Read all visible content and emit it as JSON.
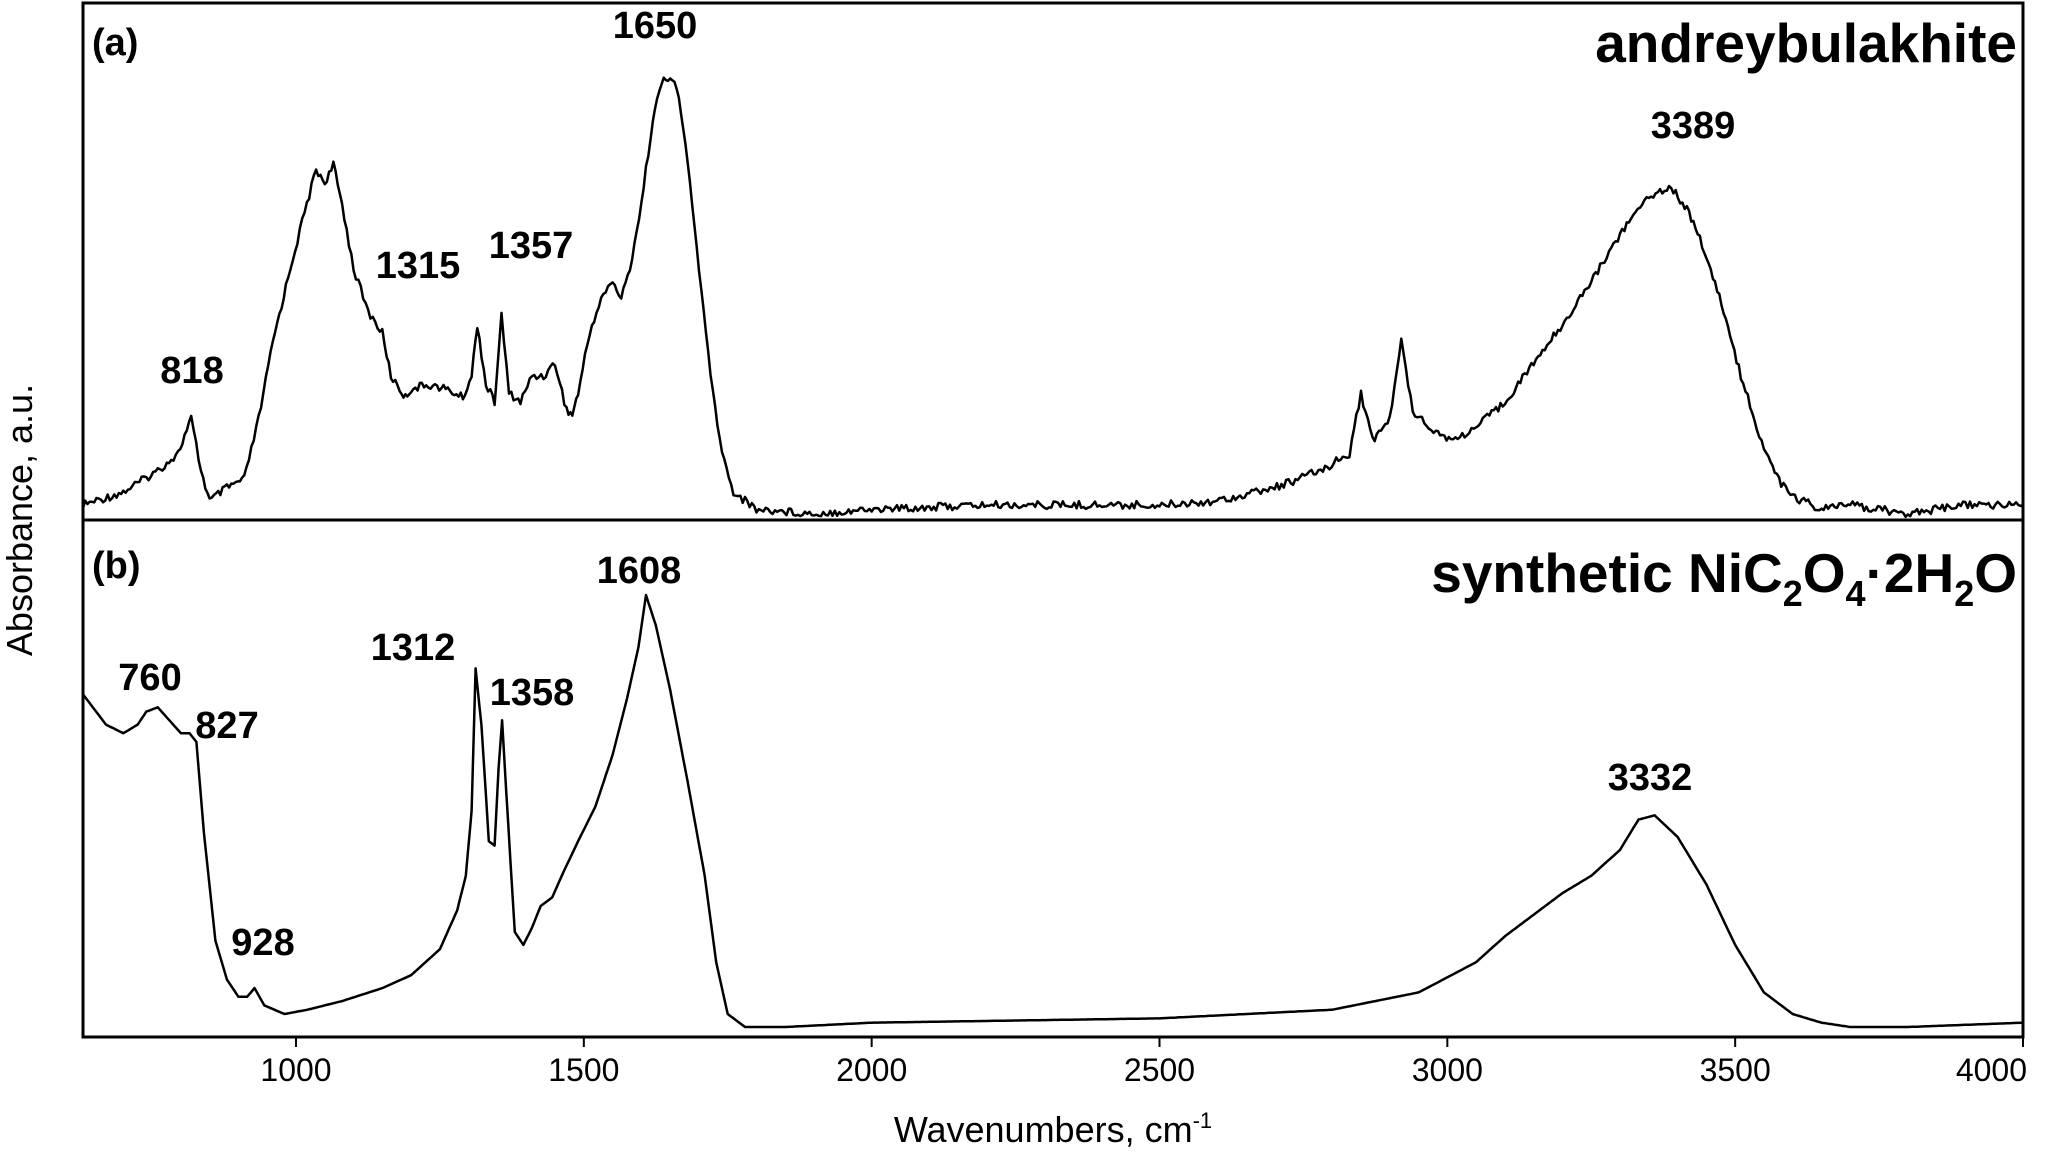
{
  "chart_data": {
    "type": "line",
    "xlabel": "Wavenumbers, cm",
    "xlabel_sup": "-1",
    "ylabel": "Absorbance, a.u.",
    "xlim": [
      630,
      4000
    ],
    "xticks": [
      "1000",
      "1500",
      "2000",
      "2500",
      "3000",
      "3500",
      "4000"
    ],
    "grid": false,
    "panels": [
      {
        "tag": "(a)",
        "title": "andreybulakhite",
        "peak_labels": [
          {
            "text": "818",
            "x": 818
          },
          {
            "text": "1315",
            "x": 1315
          },
          {
            "text": "1357",
            "x": 1357
          },
          {
            "text": "1650",
            "x": 1650
          },
          {
            "text": "3389",
            "x": 3389
          }
        ],
        "series": [
          {
            "x": [
              630,
              700,
              760,
              795,
              818,
              835,
              850,
              880,
              910,
              935,
              960,
              990,
              1015,
              1035,
              1050,
              1065,
              1080,
              1100,
              1125,
              1150,
              1165,
              1180,
              1190,
              1200,
              1230,
              1260,
              1290,
              1305,
              1315,
              1330,
              1345,
              1357,
              1370,
              1390,
              1410,
              1430,
              1450,
              1470,
              1480,
              1490,
              1510,
              1530,
              1550,
              1565,
              1580,
              1600,
              1620,
              1635,
              1650,
              1665,
              1680,
              1700,
              1720,
              1740,
              1760,
              1800,
              1900,
              2000,
              2200,
              2500,
              2600,
              2700,
              2780,
              2830,
              2850,
              2870,
              2900,
              2920,
              2940,
              2980,
              3010,
              3050,
              3100,
              3150,
              3200,
              3250,
              3300,
              3350,
              3389,
              3420,
              3450,
              3480,
              3510,
              3550,
              3580,
              3600,
              3650,
              3700,
              3800,
              3900,
              4000
            ],
            "y": [
              0.0,
              0.03,
              0.08,
              0.12,
              0.2,
              0.08,
              0.01,
              0.04,
              0.06,
              0.2,
              0.38,
              0.55,
              0.68,
              0.78,
              0.75,
              0.79,
              0.7,
              0.55,
              0.45,
              0.4,
              0.3,
              0.27,
              0.25,
              0.27,
              0.28,
              0.27,
              0.25,
              0.3,
              0.42,
              0.28,
              0.24,
              0.44,
              0.26,
              0.24,
              0.3,
              0.3,
              0.33,
              0.22,
              0.21,
              0.26,
              0.4,
              0.48,
              0.52,
              0.48,
              0.55,
              0.7,
              0.9,
              0.98,
              1.0,
              0.95,
              0.8,
              0.55,
              0.3,
              0.12,
              0.03,
              -0.01,
              -0.02,
              -0.01,
              0.0,
              0.0,
              0.01,
              0.04,
              0.08,
              0.12,
              0.26,
              0.15,
              0.2,
              0.38,
              0.22,
              0.17,
              0.15,
              0.18,
              0.24,
              0.33,
              0.42,
              0.52,
              0.63,
              0.72,
              0.74,
              0.68,
              0.58,
              0.45,
              0.3,
              0.13,
              0.05,
              0.02,
              -0.01,
              0.0,
              -0.02,
              0.0,
              0.0
            ]
          }
        ]
      },
      {
        "tag": "(b)",
        "title": "synthetic NiC",
        "title_parts": [
          "synthetic NiC",
          "2",
          "O",
          "4",
          "·2H",
          "2",
          "O"
        ],
        "peak_labels": [
          {
            "text": "760",
            "x": 760
          },
          {
            "text": "827",
            "x": 827
          },
          {
            "text": "928",
            "x": 928
          },
          {
            "text": "1312",
            "x": 1312
          },
          {
            "text": "1358",
            "x": 1358
          },
          {
            "text": "1608",
            "x": 1608
          },
          {
            "text": "3332",
            "x": 3332
          }
        ],
        "series": [
          {
            "x": [
              630,
              670,
              700,
              725,
              740,
              760,
              780,
              800,
              815,
              827,
              840,
              860,
              880,
              900,
              915,
              928,
              945,
              980,
              1020,
              1080,
              1150,
              1200,
              1250,
              1280,
              1295,
              1305,
              1312,
              1322,
              1335,
              1345,
              1352,
              1358,
              1365,
              1380,
              1395,
              1410,
              1425,
              1445,
              1465,
              1490,
              1520,
              1550,
              1575,
              1595,
              1608,
              1625,
              1650,
              1680,
              1710,
              1730,
              1750,
              1780,
              1850,
              2000,
              2500,
              2800,
              2950,
              3050,
              3100,
              3150,
              3200,
              3250,
              3300,
              3332,
              3360,
              3400,
              3450,
              3500,
              3550,
              3600,
              3650,
              3700,
              3800,
              4000
            ],
            "y": [
              0.77,
              0.7,
              0.68,
              0.7,
              0.73,
              0.74,
              0.71,
              0.68,
              0.68,
              0.66,
              0.45,
              0.2,
              0.11,
              0.07,
              0.07,
              0.09,
              0.05,
              0.03,
              0.04,
              0.06,
              0.09,
              0.12,
              0.18,
              0.27,
              0.35,
              0.5,
              0.83,
              0.7,
              0.43,
              0.42,
              0.6,
              0.71,
              0.55,
              0.22,
              0.19,
              0.23,
              0.28,
              0.3,
              0.36,
              0.43,
              0.51,
              0.63,
              0.76,
              0.88,
              1.0,
              0.93,
              0.78,
              0.57,
              0.35,
              0.15,
              0.03,
              0.0,
              0.0,
              0.01,
              0.02,
              0.04,
              0.08,
              0.15,
              0.21,
              0.26,
              0.31,
              0.35,
              0.41,
              0.48,
              0.49,
              0.44,
              0.33,
              0.19,
              0.08,
              0.03,
              0.01,
              0.0,
              0.0,
              0.01
            ]
          }
        ]
      }
    ]
  }
}
